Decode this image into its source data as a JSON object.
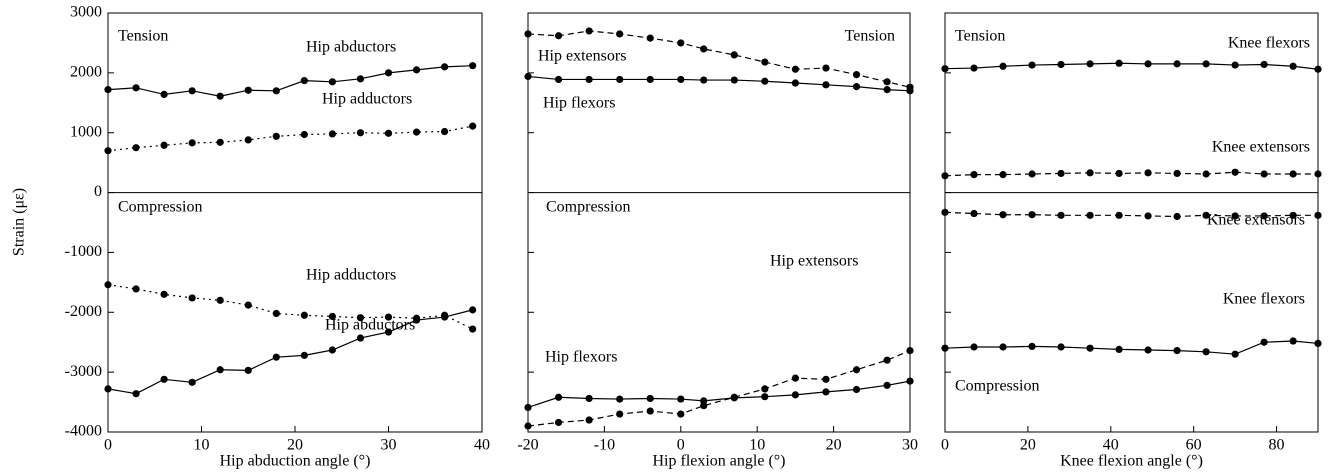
{
  "chart_data": [
    {
      "type": "line",
      "xlabel": "Hip abduction angle (°)",
      "ylabel": "Strain (με)",
      "x": [
        0,
        3,
        6,
        9,
        12,
        15,
        18,
        21,
        24,
        27,
        30,
        33,
        36,
        39
      ],
      "xlim": [
        0,
        40
      ],
      "xticks": [
        0,
        10,
        20,
        30,
        40
      ],
      "ylim": [
        -4000,
        3000
      ],
      "yticks": [
        -4000,
        -3000,
        -2000,
        -1000,
        0,
        1000,
        2000,
        3000
      ],
      "annotations": [
        "Tension",
        "Compression"
      ],
      "series": [
        {
          "name": "Hip abductors",
          "color": "#000000",
          "dash": "solid",
          "values": [
            1720,
            1750,
            1640,
            1700,
            1610,
            1710,
            1700,
            1870,
            1850,
            1900,
            2000,
            2050,
            2100,
            2120
          ]
        },
        {
          "name": "Hip adductors",
          "color": "#000000",
          "dash": "dotted",
          "values": [
            700,
            750,
            790,
            830,
            840,
            880,
            940,
            970,
            980,
            1000,
            990,
            1010,
            1020,
            1110
          ]
        },
        {
          "name": "Hip adductors",
          "color": "#000000",
          "dash": "dotted",
          "values": [
            -1540,
            -1610,
            -1700,
            -1760,
            -1800,
            -1880,
            -2020,
            -2050,
            -2070,
            -2090,
            -2080,
            -2100,
            -2050,
            -2280
          ]
        },
        {
          "name": "Hip abductors",
          "color": "#000000",
          "dash": "solid",
          "values": [
            -3280,
            -3360,
            -3120,
            -3170,
            -2960,
            -2970,
            -2750,
            -2720,
            -2630,
            -2430,
            -2330,
            -2130,
            -2080,
            -1960
          ]
        }
      ]
    },
    {
      "type": "line",
      "xlabel": "Hip flexion angle (°)",
      "x": [
        -20,
        -16,
        -12,
        -8,
        -4,
        0,
        3,
        7,
        11,
        15,
        19,
        23,
        27,
        30
      ],
      "xlim": [
        -20,
        30
      ],
      "xticks": [
        -20,
        -10,
        0,
        10,
        20,
        30
      ],
      "ylim": [
        -4000,
        3000
      ],
      "yticks": [
        -4000,
        -3000,
        -2000,
        -1000,
        0,
        1000,
        2000,
        3000
      ],
      "annotations": [
        "Tension",
        "Compression"
      ],
      "series": [
        {
          "name": "Hip extensors",
          "color": "#000000",
          "dash": "dashed",
          "values": [
            2650,
            2620,
            2700,
            2650,
            2580,
            2500,
            2400,
            2300,
            2180,
            2060,
            2080,
            1970,
            1850,
            1760
          ]
        },
        {
          "name": "Hip flexors",
          "color": "#000000",
          "dash": "solid",
          "values": [
            1940,
            1890,
            1890,
            1890,
            1890,
            1890,
            1880,
            1880,
            1860,
            1830,
            1800,
            1770,
            1720,
            1700
          ]
        },
        {
          "name": "Hip extensors",
          "color": "#000000",
          "dash": "dashed",
          "values": [
            -3900,
            -3840,
            -3800,
            -3700,
            -3650,
            -3700,
            -3560,
            -3420,
            -3280,
            -3100,
            -3120,
            -2960,
            -2800,
            -2640
          ]
        },
        {
          "name": "Hip flexors",
          "color": "#000000",
          "dash": "solid",
          "values": [
            -3590,
            -3420,
            -3440,
            -3450,
            -3440,
            -3450,
            -3480,
            -3430,
            -3410,
            -3380,
            -3330,
            -3290,
            -3220,
            -3150
          ]
        }
      ]
    },
    {
      "type": "line",
      "xlabel": "Knee flexion angle (°)",
      "x": [
        0,
        7,
        14,
        21,
        28,
        35,
        42,
        49,
        56,
        63,
        70,
        77,
        84,
        90
      ],
      "xlim": [
        0,
        90
      ],
      "xticks": [
        0,
        20,
        40,
        60,
        80
      ],
      "ylim": [
        -4000,
        3000
      ],
      "yticks": [
        -4000,
        -3000,
        -2000,
        -1000,
        0,
        1000,
        2000,
        3000
      ],
      "annotations": [
        "Tension",
        "Compression"
      ],
      "series": [
        {
          "name": "Knee flexors",
          "color": "#000000",
          "dash": "solid",
          "values": [
            2070,
            2080,
            2110,
            2130,
            2140,
            2150,
            2160,
            2150,
            2150,
            2150,
            2130,
            2140,
            2110,
            2060
          ]
        },
        {
          "name": "Knee extensors",
          "color": "#000000",
          "dash": "dashed",
          "values": [
            280,
            300,
            300,
            310,
            320,
            330,
            320,
            330,
            320,
            310,
            340,
            310,
            310,
            310
          ]
        },
        {
          "name": "Knee extensors",
          "color": "#000000",
          "dash": "dashed",
          "values": [
            -330,
            -350,
            -370,
            -370,
            -380,
            -380,
            -380,
            -390,
            -400,
            -380,
            -390,
            -390,
            -380,
            -380
          ]
        },
        {
          "name": "Knee flexors",
          "color": "#000000",
          "dash": "solid",
          "values": [
            -2600,
            -2580,
            -2580,
            -2570,
            -2580,
            -2600,
            -2620,
            -2630,
            -2640,
            -2660,
            -2700,
            -2500,
            -2480,
            -2520
          ]
        }
      ]
    }
  ]
}
